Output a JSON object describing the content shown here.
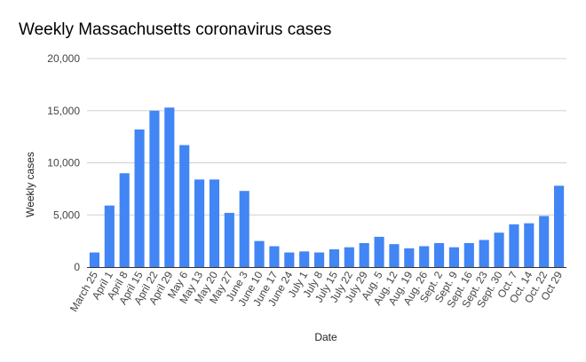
{
  "chart_data": {
    "type": "bar",
    "title": "Weekly Massachusetts coronavirus cases",
    "xlabel": "Date",
    "ylabel": "Weekly cases",
    "ylim": [
      0,
      20000
    ],
    "yticks": [
      0,
      5000,
      10000,
      15000,
      20000
    ],
    "ytick_labels": [
      "0",
      "5,000",
      "10,000",
      "15,000",
      "20,000"
    ],
    "grid": true,
    "legend": "none",
    "bar_color": "#4285f4",
    "categories": [
      "March 25",
      "April 1",
      "April 8",
      "April 15",
      "April 22",
      "April 29",
      "May 6",
      "May 13",
      "May 20",
      "May 27",
      "June 3",
      "June 10",
      "June 17",
      "June 24",
      "July 1",
      "July 8",
      "July 15",
      "July 22",
      "July 29",
      "Aug. 5",
      "Aug. 12",
      "Aug. 19",
      "Aug. 26",
      "Sept. 2",
      "Sept. 9",
      "Sept. 16",
      "Sept. 23",
      "Sept. 30",
      "Oct. 7",
      "Oct. 14",
      "Oct. 22",
      "Oct 29"
    ],
    "values": [
      1400,
      5900,
      9000,
      13200,
      15000,
      15300,
      11700,
      8400,
      8400,
      5200,
      7300,
      2500,
      2000,
      1400,
      1500,
      1400,
      1700,
      1900,
      2300,
      2900,
      2200,
      1800,
      2000,
      2300,
      1900,
      2300,
      2600,
      3300,
      4100,
      4200,
      4900,
      7800
    ]
  }
}
